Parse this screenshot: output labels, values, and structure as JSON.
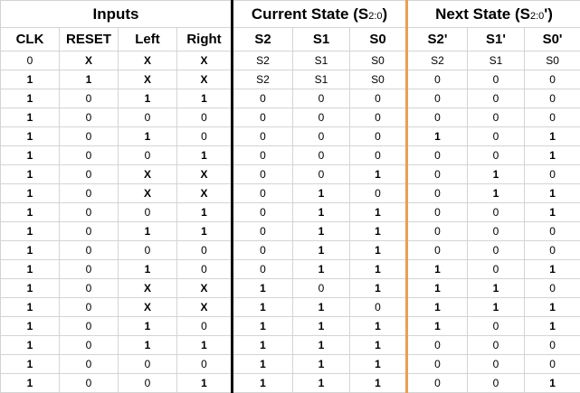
{
  "groups": {
    "inputs": "Inputs",
    "current": "Current State (S",
    "current_sub": "2:0",
    "current_close": ")",
    "next": "Next State (S",
    "next_sub": "2:0",
    "next_close": "')"
  },
  "columns": [
    "CLK",
    "RESET",
    "Left",
    "Right",
    "S2",
    "S1",
    "S0",
    "S2'",
    "S1'",
    "S0'"
  ],
  "rows": [
    [
      "0",
      "X",
      "X",
      "X",
      "S2",
      "S1",
      "S0",
      "S2",
      "S1",
      "S0"
    ],
    [
      "1",
      "1",
      "X",
      "X",
      "S2",
      "S1",
      "S0",
      "0",
      "0",
      "0"
    ],
    [
      "1",
      "0",
      "1",
      "1",
      "0",
      "0",
      "0",
      "0",
      "0",
      "0"
    ],
    [
      "1",
      "0",
      "0",
      "0",
      "0",
      "0",
      "0",
      "0",
      "0",
      "0"
    ],
    [
      "1",
      "0",
      "1",
      "0",
      "0",
      "0",
      "0",
      "1",
      "0",
      "1"
    ],
    [
      "1",
      "0",
      "0",
      "1",
      "0",
      "0",
      "0",
      "0",
      "0",
      "1"
    ],
    [
      "1",
      "0",
      "X",
      "X",
      "0",
      "0",
      "1",
      "0",
      "1",
      "0"
    ],
    [
      "1",
      "0",
      "X",
      "X",
      "0",
      "1",
      "0",
      "0",
      "1",
      "1"
    ],
    [
      "1",
      "0",
      "0",
      "1",
      "0",
      "1",
      "1",
      "0",
      "0",
      "1"
    ],
    [
      "1",
      "0",
      "1",
      "1",
      "0",
      "1",
      "1",
      "0",
      "0",
      "0"
    ],
    [
      "1",
      "0",
      "0",
      "0",
      "0",
      "1",
      "1",
      "0",
      "0",
      "0"
    ],
    [
      "1",
      "0",
      "1",
      "0",
      "0",
      "1",
      "1",
      "1",
      "0",
      "1"
    ],
    [
      "1",
      "0",
      "X",
      "X",
      "1",
      "0",
      "1",
      "1",
      "1",
      "0"
    ],
    [
      "1",
      "0",
      "X",
      "X",
      "1",
      "1",
      "0",
      "1",
      "1",
      "1"
    ],
    [
      "1",
      "0",
      "1",
      "0",
      "1",
      "1",
      "1",
      "1",
      "0",
      "1"
    ],
    [
      "1",
      "0",
      "1",
      "1",
      "1",
      "1",
      "1",
      "0",
      "0",
      "0"
    ],
    [
      "1",
      "0",
      "0",
      "0",
      "1",
      "1",
      "1",
      "0",
      "0",
      "0"
    ],
    [
      "1",
      "0",
      "0",
      "1",
      "1",
      "1",
      "1",
      "0",
      "0",
      "1"
    ]
  ]
}
